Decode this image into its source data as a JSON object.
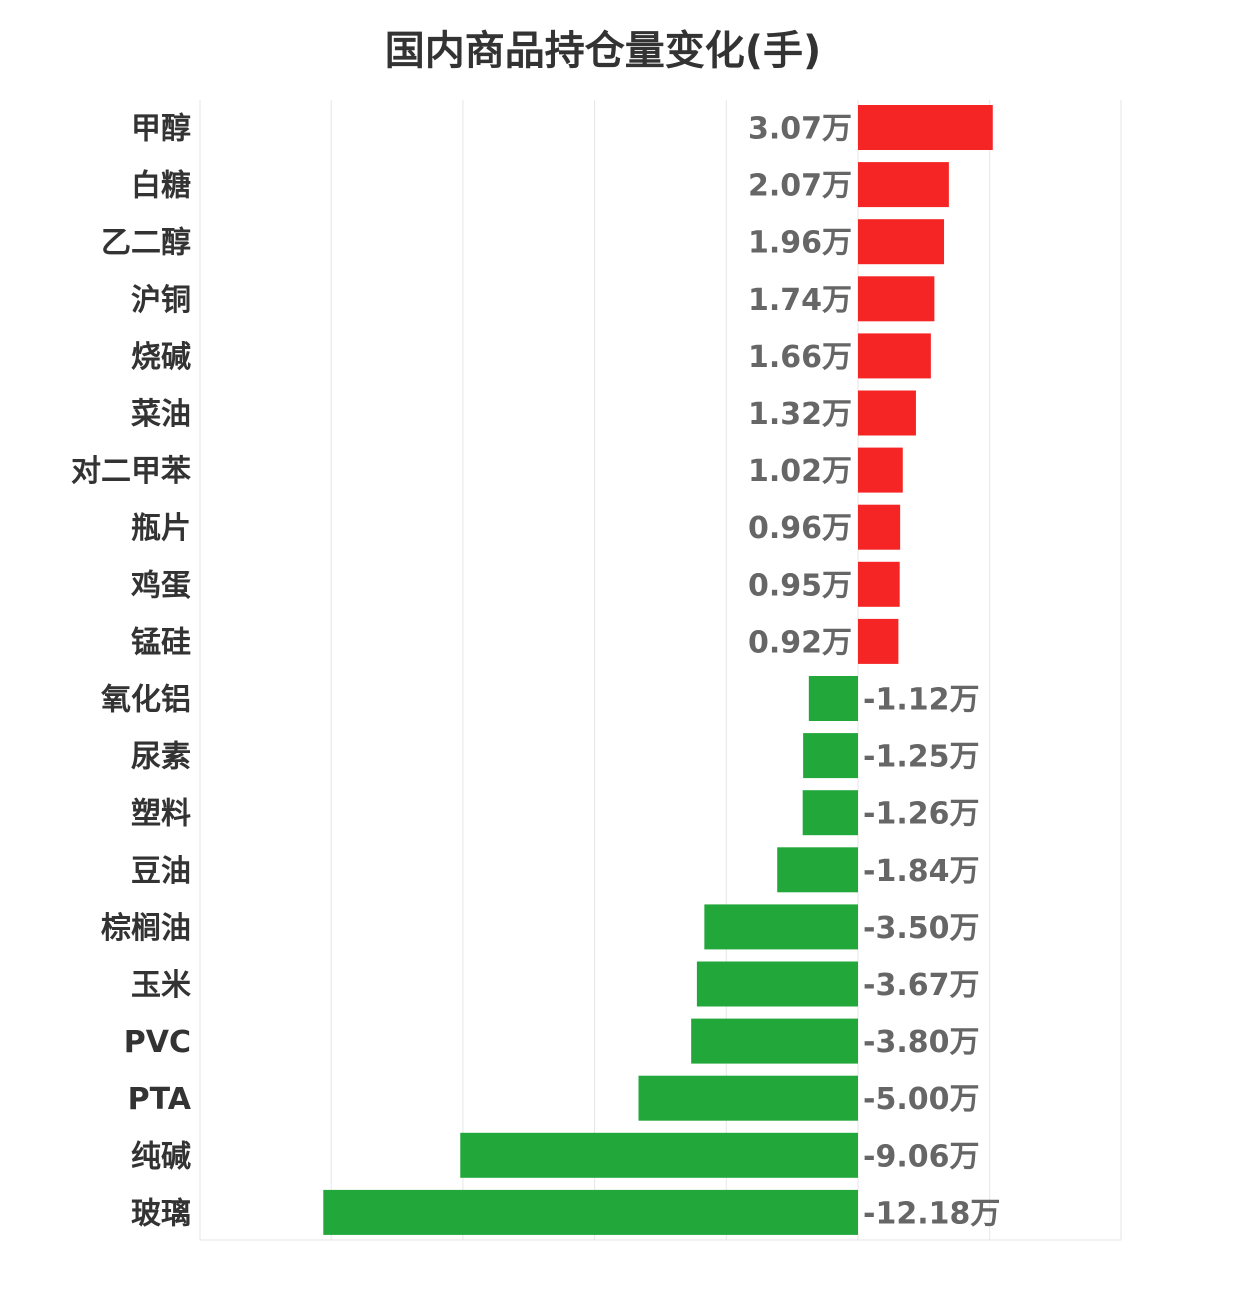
{
  "chart_data": {
    "type": "bar",
    "orientation": "horizontal",
    "title": "国内商品持仓量变化(手)",
    "unit_suffix": "万",
    "categories": [
      "甲醇",
      "白糖",
      "乙二醇",
      "沪铜",
      "烧碱",
      "菜油",
      "对二甲苯",
      "瓶片",
      "鸡蛋",
      "锰硅",
      "氧化铝",
      "尿素",
      "塑料",
      "豆油",
      "棕榈油",
      "玉米",
      "PVC",
      "PTA",
      "纯碱",
      "玻璃"
    ],
    "values": [
      3.07,
      2.07,
      1.96,
      1.74,
      1.66,
      1.32,
      1.02,
      0.96,
      0.95,
      0.92,
      -1.12,
      -1.25,
      -1.26,
      -1.84,
      -3.5,
      -3.67,
      -3.8,
      -5.0,
      -9.06,
      -12.18
    ],
    "value_labels": [
      "3.07万",
      "2.07万",
      "1.96万",
      "1.74万",
      "1.66万",
      "1.32万",
      "1.02万",
      "0.96万",
      "0.95万",
      "0.92万",
      "-1.12万",
      "-1.25万",
      "-1.26万",
      "-1.84万",
      "-3.50万",
      "-3.67万",
      "-3.80万",
      "-5.00万",
      "-9.06万",
      "-12.18万"
    ],
    "xlim": [
      -15,
      6
    ],
    "grid_step": 3,
    "grid": true,
    "colors": {
      "positive": "#f62525",
      "negative": "#21a73a",
      "grid": "#e6e6e6"
    }
  }
}
